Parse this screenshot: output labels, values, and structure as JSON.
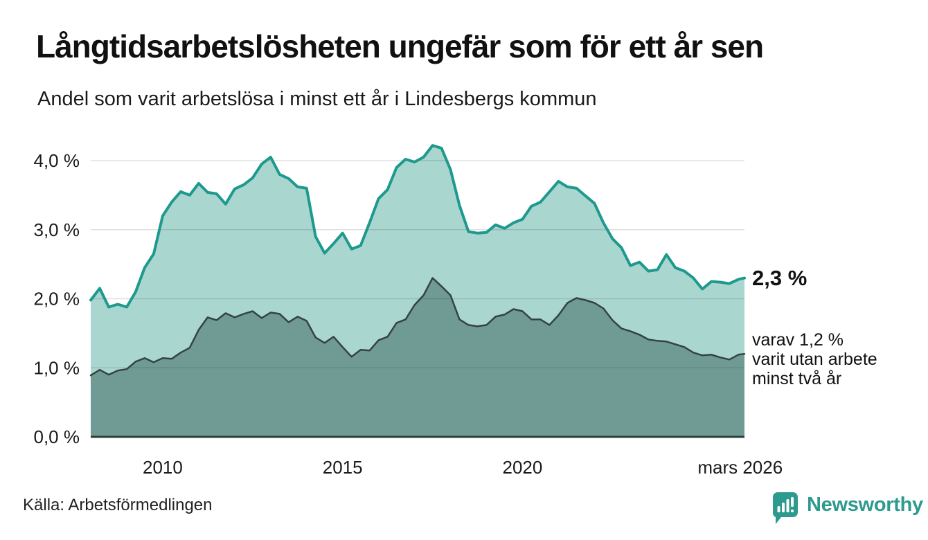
{
  "header": {
    "title": "Långtidsarbetslösheten ungefär som för ett år sen",
    "subtitle": "Andel som varit arbetslösa i minst ett år i Lindesbergs kommun"
  },
  "annotations": {
    "latest_value": "2,3 %",
    "latest_value_numeric": 2.3,
    "note_lines": [
      "varav 1,2 %",
      "varit utan arbete",
      "minst två år"
    ],
    "note_value_numeric": 1.2
  },
  "footer": {
    "source": "Källa: Arbetsförmedlingen",
    "brand": "Newsworthy"
  },
  "colors": {
    "accent_teal": "#1e998d",
    "light_fill": "#aad6d0",
    "dark_fill": "#709b95",
    "dark_line": "#35433f",
    "axis_line": "#2e3d3a",
    "gridline_overlay": "rgba(0,0,0,0.12)",
    "text": "#1a1a1a",
    "brand_teal": "#2d9a8e"
  },
  "chart_data": {
    "type": "area",
    "title": "Långtidsarbetslösheten ungefär som för ett år sen",
    "subtitle": "Andel som varit arbetslösa i minst ett år i Lindesbergs kommun",
    "unit": "%",
    "grid": true,
    "legend": "none (direct labels at line ends)",
    "x_axis": {
      "range": [
        2008.0,
        2026.17
      ],
      "ticks": [
        {
          "value": 2010,
          "label": "2010"
        },
        {
          "value": 2015,
          "label": "2015"
        },
        {
          "value": 2020,
          "label": "2020"
        },
        {
          "value": 2026.05,
          "label": "mars 2026"
        }
      ]
    },
    "y_axis": {
      "range": [
        0,
        4.4
      ],
      "ticks": [
        {
          "value": 0,
          "label": "0,0 %"
        },
        {
          "value": 1,
          "label": "1,0 %"
        },
        {
          "value": 2,
          "label": "2,0 %"
        },
        {
          "value": 3,
          "label": "3,0 %"
        },
        {
          "value": 4,
          "label": "4,0 %"
        }
      ]
    },
    "x": [
      2008.0,
      2008.25,
      2008.5,
      2008.75,
      2009.0,
      2009.25,
      2009.5,
      2009.75,
      2010.0,
      2010.25,
      2010.5,
      2010.75,
      2011.0,
      2011.25,
      2011.5,
      2011.75,
      2012.0,
      2012.25,
      2012.5,
      2012.75,
      2013.0,
      2013.25,
      2013.5,
      2013.75,
      2014.0,
      2014.25,
      2014.5,
      2014.75,
      2015.0,
      2015.25,
      2015.5,
      2015.75,
      2016.0,
      2016.25,
      2016.5,
      2016.75,
      2017.0,
      2017.25,
      2017.5,
      2017.75,
      2018.0,
      2018.25,
      2018.5,
      2018.75,
      2019.0,
      2019.25,
      2019.5,
      2019.75,
      2020.0,
      2020.25,
      2020.5,
      2020.75,
      2021.0,
      2021.25,
      2021.5,
      2021.75,
      2022.0,
      2022.25,
      2022.5,
      2022.75,
      2023.0,
      2023.25,
      2023.5,
      2023.75,
      2024.0,
      2024.25,
      2024.5,
      2024.75,
      2025.0,
      2025.25,
      2025.5,
      2025.75,
      2026.0,
      2026.17
    ],
    "series": [
      {
        "id": "min1yr",
        "name": "Andel arbetslösa minst ett år",
        "line_color": "#1e998d",
        "fill_color": "#aad6d0",
        "line_width": 4,
        "end_label": "2,3 %",
        "values": [
          1.98,
          2.15,
          1.88,
          1.92,
          1.88,
          2.1,
          2.45,
          2.65,
          3.2,
          3.4,
          3.55,
          3.5,
          3.67,
          3.54,
          3.52,
          3.37,
          3.59,
          3.65,
          3.75,
          3.95,
          4.05,
          3.8,
          3.74,
          3.62,
          3.6,
          2.9,
          2.66,
          2.8,
          2.95,
          2.72,
          2.77,
          3.1,
          3.45,
          3.58,
          3.9,
          4.02,
          3.98,
          4.05,
          4.22,
          4.18,
          3.87,
          3.35,
          2.97,
          2.95,
          2.96,
          3.07,
          3.02,
          3.1,
          3.15,
          3.34,
          3.4,
          3.55,
          3.7,
          3.62,
          3.6,
          3.49,
          3.38,
          3.1,
          2.87,
          2.74,
          2.48,
          2.53,
          2.4,
          2.42,
          2.64,
          2.45,
          2.4,
          2.3,
          2.14,
          2.25,
          2.24,
          2.22,
          2.28,
          2.3
        ]
      },
      {
        "id": "min2yr",
        "name": "Andel arbetslösa minst två år",
        "line_color": "#35433f",
        "fill_color": "#709b95",
        "line_width": 2.5,
        "end_label": "varav 1,2 % varit utan arbete minst två år",
        "values": [
          0.89,
          0.97,
          0.9,
          0.96,
          0.98,
          1.09,
          1.14,
          1.08,
          1.14,
          1.13,
          1.22,
          1.29,
          1.55,
          1.73,
          1.69,
          1.79,
          1.73,
          1.78,
          1.82,
          1.72,
          1.8,
          1.78,
          1.66,
          1.74,
          1.68,
          1.44,
          1.36,
          1.45,
          1.3,
          1.16,
          1.26,
          1.25,
          1.4,
          1.45,
          1.65,
          1.7,
          1.91,
          2.05,
          2.3,
          2.18,
          2.05,
          1.7,
          1.62,
          1.6,
          1.62,
          1.74,
          1.77,
          1.85,
          1.82,
          1.7,
          1.7,
          1.62,
          1.76,
          1.94,
          2.01,
          1.98,
          1.94,
          1.86,
          1.69,
          1.57,
          1.53,
          1.48,
          1.41,
          1.39,
          1.38,
          1.34,
          1.3,
          1.22,
          1.18,
          1.19,
          1.15,
          1.12,
          1.19,
          1.2
        ]
      }
    ]
  }
}
